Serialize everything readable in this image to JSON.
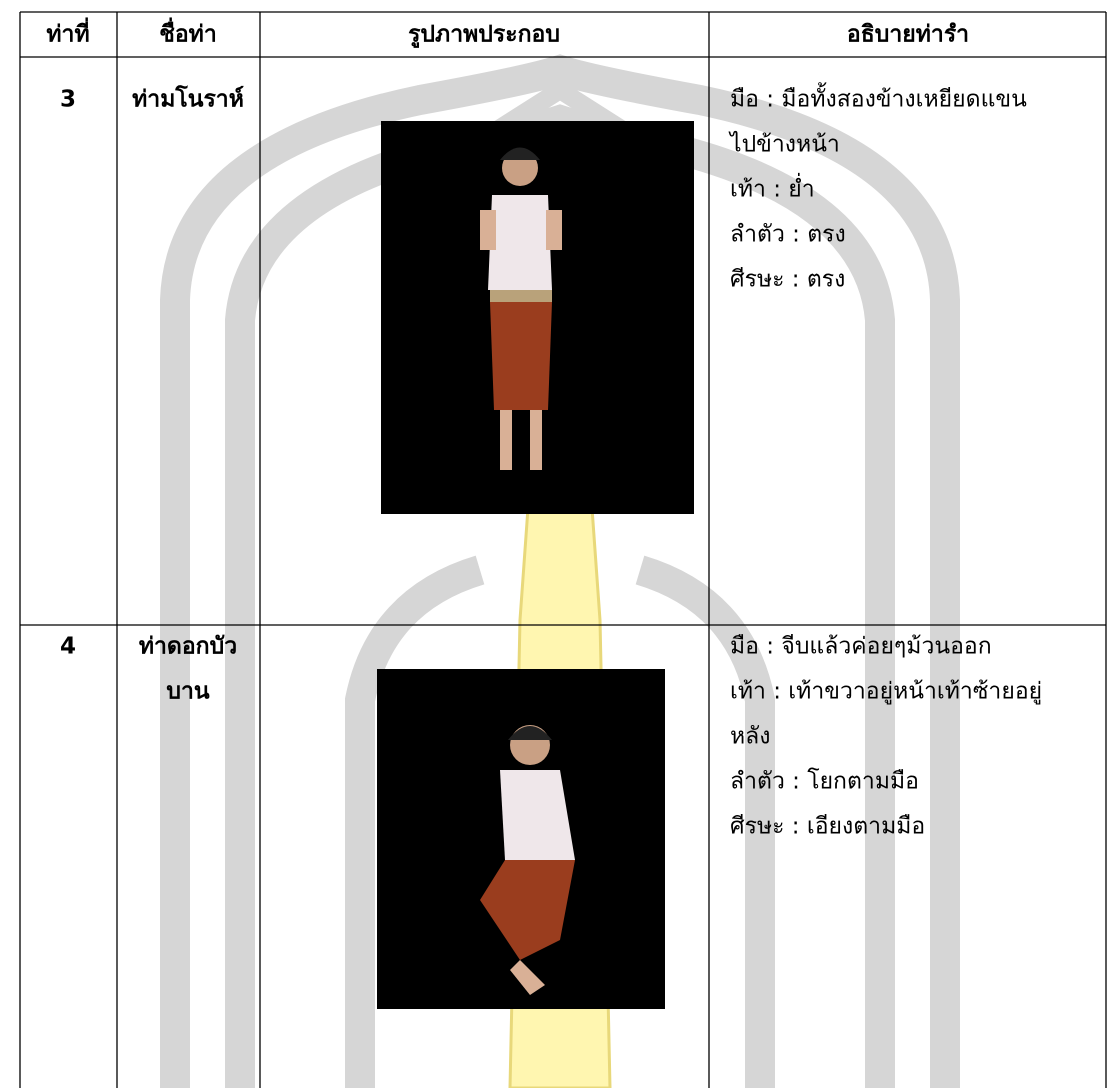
{
  "table": {
    "header": [
      "ท่าที่",
      "ชื่อท่า",
      "รูปภาพประกอบ",
      "อธิบายท่ารำ"
    ],
    "rows": [
      {
        "number": "3",
        "name": [
          "ท่ามโนราห์"
        ],
        "description": [
          "มือ  : มือทั้งสองข้างเหยียดแขน",
          "ไปข้างหน้า",
          "เท้า : ย่ำ",
          "ลำตัว : ตรง",
          "ศีรษะ : ตรง"
        ]
      },
      {
        "number": "4",
        "name": [
          "ท่าดอกบัว",
          "บาน"
        ],
        "description": [
          "มือ  : จีบแล้วค่อยๆม้วนออก",
          "เท้า : เท้าขวาอยู่หน้าเท้าซ้ายอยู่",
          "หลัง",
          "ลำตัว : โยกตามมือ",
          "ศีรษะ : เอียงตามมือ"
        ]
      }
    ]
  }
}
